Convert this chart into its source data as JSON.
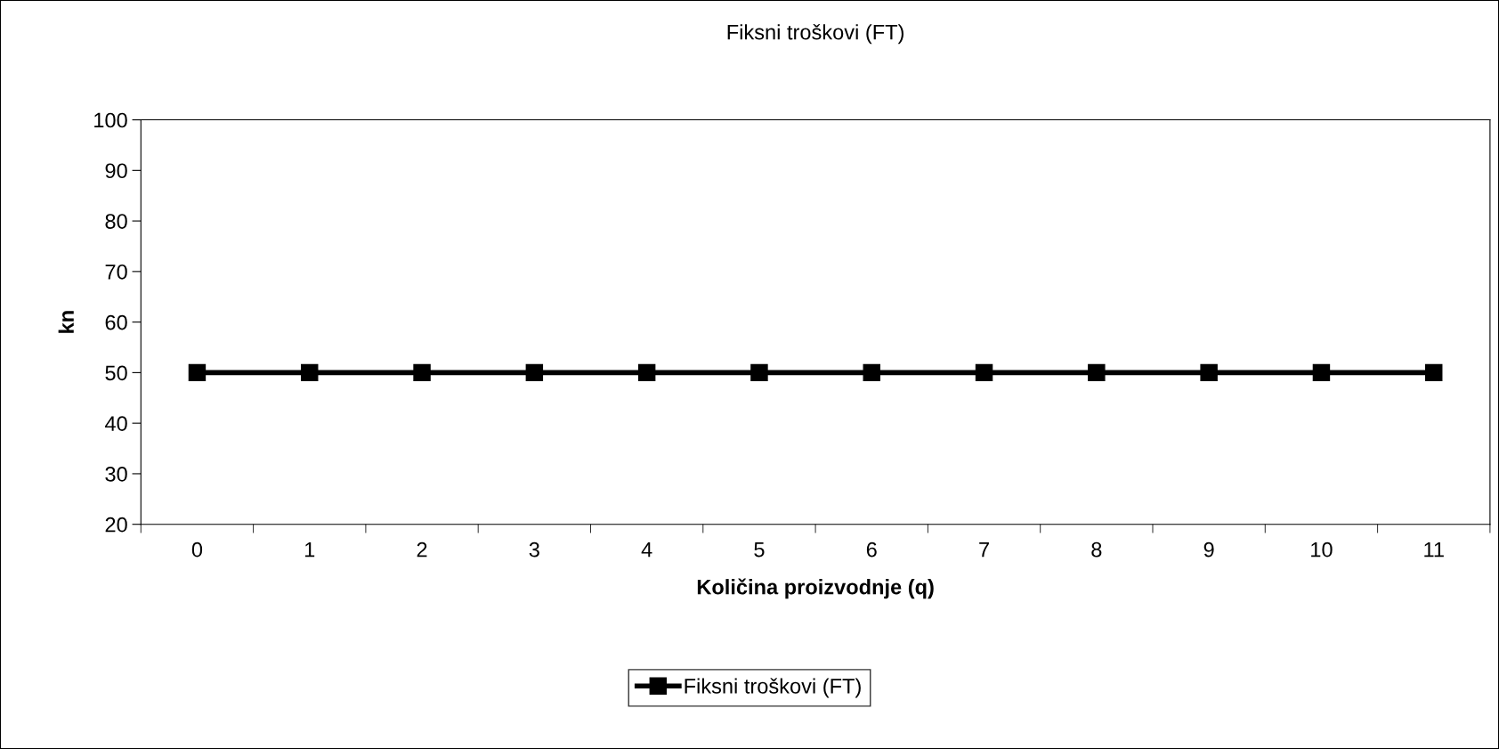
{
  "chart_data": {
    "type": "line",
    "title": "Fiksni troškovi (FT)",
    "xlabel": "Količina proizvodnje (q)",
    "ylabel": "kn",
    "categories": [
      "0",
      "1",
      "2",
      "3",
      "4",
      "5",
      "6",
      "7",
      "8",
      "9",
      "10",
      "11"
    ],
    "series": [
      {
        "name": "Fiksni troškovi (FT)",
        "color": "#000000",
        "values": [
          50,
          50,
          50,
          50,
          50,
          50,
          50,
          50,
          50,
          50,
          50,
          50
        ]
      }
    ],
    "ylim": [
      20,
      100
    ],
    "yticks": [
      20,
      30,
      40,
      50,
      60,
      70,
      80,
      90,
      100
    ],
    "grid": false,
    "legend": "bottom",
    "marker": "square",
    "line_style": "solid"
  }
}
